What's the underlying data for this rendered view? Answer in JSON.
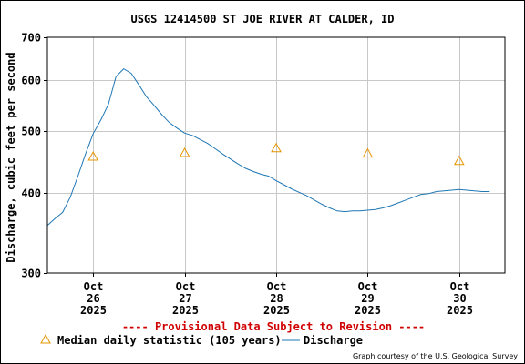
{
  "chart_data": {
    "type": "line",
    "title": "USGS 12414500 ST JOE RIVER AT CALDER, ID",
    "ylabel": "Discharge, cubic feet per second",
    "xlabel": "",
    "y_scale": "log",
    "ylim": [
      300,
      700
    ],
    "y_ticks": [
      {
        "value": 300,
        "label": "300"
      },
      {
        "value": 400,
        "label": "400"
      },
      {
        "value": 500,
        "label": "500"
      },
      {
        "value": 600,
        "label": "600"
      },
      {
        "value": 700,
        "label": "700"
      }
    ],
    "xlim": [
      "2025-10-25 12:00",
      "2025-10-30 12:00"
    ],
    "x_ticks": [
      {
        "value": "2025-10-26 00:00",
        "label": [
          "Oct",
          "26",
          "2025"
        ]
      },
      {
        "value": "2025-10-27 00:00",
        "label": [
          "Oct",
          "27",
          "2025"
        ]
      },
      {
        "value": "2025-10-28 00:00",
        "label": [
          "Oct",
          "28",
          "2025"
        ]
      },
      {
        "value": "2025-10-29 00:00",
        "label": [
          "Oct",
          "29",
          "2025"
        ]
      },
      {
        "value": "2025-10-30 00:00",
        "label": [
          "Oct",
          "30",
          "2025"
        ]
      }
    ],
    "grid": true,
    "series": [
      {
        "name": "Discharge",
        "color": "#1f77b4",
        "style": "line",
        "x": [
          "2025-10-25 12:00",
          "2025-10-25 14:00",
          "2025-10-25 16:00",
          "2025-10-25 18:00",
          "2025-10-25 20:00",
          "2025-10-25 22:00",
          "2025-10-26 00:00",
          "2025-10-26 02:00",
          "2025-10-26 04:00",
          "2025-10-26 06:00",
          "2025-10-26 08:00",
          "2025-10-26 10:00",
          "2025-10-26 12:00",
          "2025-10-26 14:00",
          "2025-10-26 16:00",
          "2025-10-26 18:00",
          "2025-10-26 20:00",
          "2025-10-26 22:00",
          "2025-10-27 00:00",
          "2025-10-27 02:00",
          "2025-10-27 04:00",
          "2025-10-27 06:00",
          "2025-10-27 08:00",
          "2025-10-27 10:00",
          "2025-10-27 12:00",
          "2025-10-27 14:00",
          "2025-10-27 16:00",
          "2025-10-27 18:00",
          "2025-10-27 20:00",
          "2025-10-27 22:00",
          "2025-10-28 00:00",
          "2025-10-28 02:00",
          "2025-10-28 04:00",
          "2025-10-28 06:00",
          "2025-10-28 08:00",
          "2025-10-28 10:00",
          "2025-10-28 12:00",
          "2025-10-28 14:00",
          "2025-10-28 16:00",
          "2025-10-28 18:00",
          "2025-10-28 20:00",
          "2025-10-28 22:00",
          "2025-10-29 00:00",
          "2025-10-29 02:00",
          "2025-10-29 04:00",
          "2025-10-29 06:00",
          "2025-10-29 08:00",
          "2025-10-29 10:00",
          "2025-10-29 12:00",
          "2025-10-29 14:00",
          "2025-10-29 16:00",
          "2025-10-29 18:00",
          "2025-10-29 20:00",
          "2025-10-29 22:00",
          "2025-10-30 00:00",
          "2025-10-30 02:00",
          "2025-10-30 04:00",
          "2025-10-30 06:00",
          "2025-10-30 08:00"
        ],
        "values": [
          356,
          365,
          373,
          394,
          425,
          460,
          495,
          520,
          550,
          608,
          625,
          615,
          590,
          565,
          548,
          530,
          515,
          505,
          496,
          492,
          485,
          478,
          469,
          460,
          452,
          444,
          437,
          432,
          428,
          425,
          418,
          412,
          406,
          401,
          396,
          390,
          384,
          379,
          375,
          374,
          375,
          375,
          376,
          377,
          379,
          382,
          386,
          390,
          394,
          398,
          399,
          402,
          403,
          404,
          405,
          404,
          403,
          402,
          402
        ]
      },
      {
        "name": "Median daily statistic (105 years)",
        "color": "#e69500",
        "style": "triangle",
        "x": [
          "2025-10-26 00:00",
          "2025-10-27 00:00",
          "2025-10-28 00:00",
          "2025-10-29 00:00",
          "2025-10-30 00:00"
        ],
        "values": [
          456,
          462,
          470,
          461,
          449
        ]
      }
    ],
    "annotation": "---- Provisional Data Subject to Revision ----",
    "credit": "Graph courtesy of the U.S. Geological Survey"
  },
  "legend": {
    "median_label": "Median daily statistic (105 years)",
    "discharge_label": "Discharge"
  },
  "colors": {
    "discharge": "#1f77b4",
    "median": "#e69500",
    "provisional": "#d00000",
    "grid": "#c8c8c8"
  }
}
